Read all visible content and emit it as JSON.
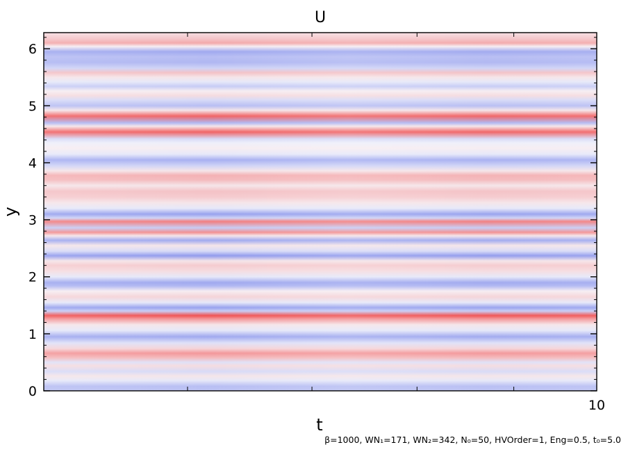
{
  "chart_data": {
    "type": "heatmap",
    "title": "U",
    "xlabel": "t",
    "ylabel": "y",
    "xlim": [
      0,
      10
    ],
    "ylim": [
      0,
      6.283
    ],
    "x_tick_labels": [
      "10"
    ],
    "y_ticks": [
      0,
      1,
      2,
      3,
      4,
      5,
      6
    ],
    "y_tick_labels": [
      "0",
      "1",
      "2",
      "3",
      "4",
      "5",
      "6"
    ],
    "x_minor_ticks": [
      2.6,
      4.85,
      6.75,
      8.5
    ],
    "colormap": {
      "negative": "#5a6ae6",
      "zero": "#f6f6fb",
      "positive": "#f04a4a"
    },
    "value_range": [
      -1,
      1
    ],
    "y_profile": [
      [
        0.0,
        -0.35
      ],
      [
        0.08,
        -0.4
      ],
      [
        0.18,
        -0.1
      ],
      [
        0.26,
        0.1
      ],
      [
        0.34,
        -0.2
      ],
      [
        0.44,
        0.15
      ],
      [
        0.5,
        -0.15
      ],
      [
        0.58,
        0.35
      ],
      [
        0.66,
        0.55
      ],
      [
        0.74,
        0.2
      ],
      [
        0.84,
        -0.15
      ],
      [
        0.95,
        -0.55
      ],
      [
        1.06,
        -0.1
      ],
      [
        1.16,
        0.1
      ],
      [
        1.26,
        0.55
      ],
      [
        1.32,
        0.95
      ],
      [
        1.4,
        -0.3
      ],
      [
        1.46,
        -0.6
      ],
      [
        1.55,
        -0.1
      ],
      [
        1.65,
        0.2
      ],
      [
        1.75,
        0.05
      ],
      [
        1.84,
        -0.45
      ],
      [
        1.9,
        -0.55
      ],
      [
        2.0,
        -0.1
      ],
      [
        2.1,
        0.15
      ],
      [
        2.2,
        0.25
      ],
      [
        2.28,
        0.1
      ],
      [
        2.37,
        -0.65
      ],
      [
        2.45,
        -0.2
      ],
      [
        2.55,
        0.1
      ],
      [
        2.64,
        -0.55
      ],
      [
        2.72,
        0.1
      ],
      [
        2.78,
        0.6
      ],
      [
        2.86,
        -0.3
      ],
      [
        2.97,
        0.7
      ],
      [
        3.03,
        -0.25
      ],
      [
        3.1,
        -0.6
      ],
      [
        3.2,
        -0.1
      ],
      [
        3.3,
        0.1
      ],
      [
        3.4,
        0.25
      ],
      [
        3.5,
        0.3
      ],
      [
        3.6,
        0.1
      ],
      [
        3.7,
        0.35
      ],
      [
        3.78,
        0.4
      ],
      [
        3.86,
        0.1
      ],
      [
        3.95,
        -0.25
      ],
      [
        4.05,
        -0.5
      ],
      [
        4.15,
        -0.1
      ],
      [
        4.25,
        0.05
      ],
      [
        4.35,
        -0.05
      ],
      [
        4.42,
        -0.2
      ],
      [
        4.54,
        0.85
      ],
      [
        4.64,
        0.1
      ],
      [
        4.7,
        -0.45
      ],
      [
        4.82,
        0.85
      ],
      [
        4.92,
        0.1
      ],
      [
        5.0,
        -0.4
      ],
      [
        5.1,
        -0.2
      ],
      [
        5.18,
        0.15
      ],
      [
        5.26,
        0.05
      ],
      [
        5.34,
        -0.3
      ],
      [
        5.42,
        -0.1
      ],
      [
        5.5,
        0.1
      ],
      [
        5.58,
        0.3
      ],
      [
        5.66,
        -0.25
      ],
      [
        5.76,
        -0.45
      ],
      [
        5.86,
        -0.4
      ],
      [
        5.95,
        -0.55
      ],
      [
        6.04,
        0.05
      ],
      [
        6.1,
        0.45
      ],
      [
        6.17,
        0.3
      ],
      [
        6.24,
        0.2
      ],
      [
        6.283,
        0.15
      ]
    ]
  },
  "footnote": "β=1000, WN₁=171, WN₂=342, N₀=50, HVOrder=1, Eng=0.5, t₀=5.0"
}
